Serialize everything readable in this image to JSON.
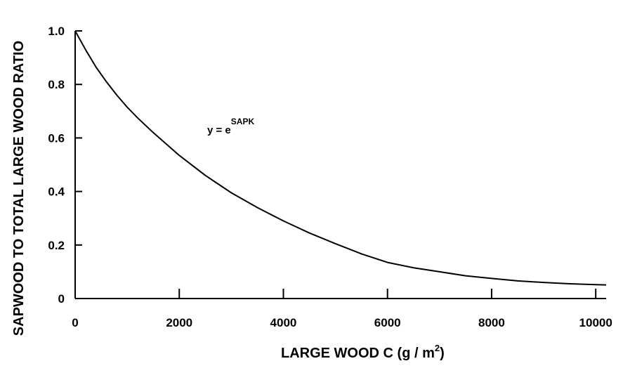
{
  "chart_data": {
    "type": "line",
    "xlabel": "LARGE WOOD C (g / m",
    "xlabel_superscript": "2",
    "xlabel_suffix": ")",
    "ylabel": "SAPWOOD TO TOTAL LARGE WOOD RATIO",
    "xlim": [
      0,
      10200
    ],
    "ylim": [
      0,
      1.0
    ],
    "x_ticks": [
      0,
      2000,
      4000,
      6000,
      8000,
      10000
    ],
    "x_tick_labels": [
      "0",
      "2000",
      "4000",
      "6000",
      "8000",
      "10000"
    ],
    "y_ticks": [
      0,
      0.2,
      0.4,
      0.6,
      0.8,
      1.0
    ],
    "y_tick_labels": [
      "0",
      "0.2",
      "0.4",
      "0.6",
      "0.8",
      "1.0"
    ],
    "grid": false,
    "annotation": {
      "text": "y = e",
      "superscript": "SAPK",
      "x": 2500,
      "y": 0.62
    },
    "series": [
      {
        "x": [
          0,
          200,
          400,
          600,
          800,
          1000,
          1200,
          1500,
          2000,
          2500,
          3000,
          3500,
          4000,
          4500,
          5000,
          5500,
          6000,
          6500,
          7000,
          7500,
          8000,
          8500,
          9000,
          9500,
          10000,
          10200
        ],
        "y": [
          1.0,
          0.93,
          0.865,
          0.81,
          0.76,
          0.715,
          0.675,
          0.62,
          0.535,
          0.46,
          0.395,
          0.34,
          0.29,
          0.245,
          0.205,
          0.167,
          0.135,
          0.115,
          0.1,
          0.085,
          0.075,
          0.066,
          0.06,
          0.055,
          0.052,
          0.051
        ],
        "color": "#000000"
      }
    ]
  }
}
